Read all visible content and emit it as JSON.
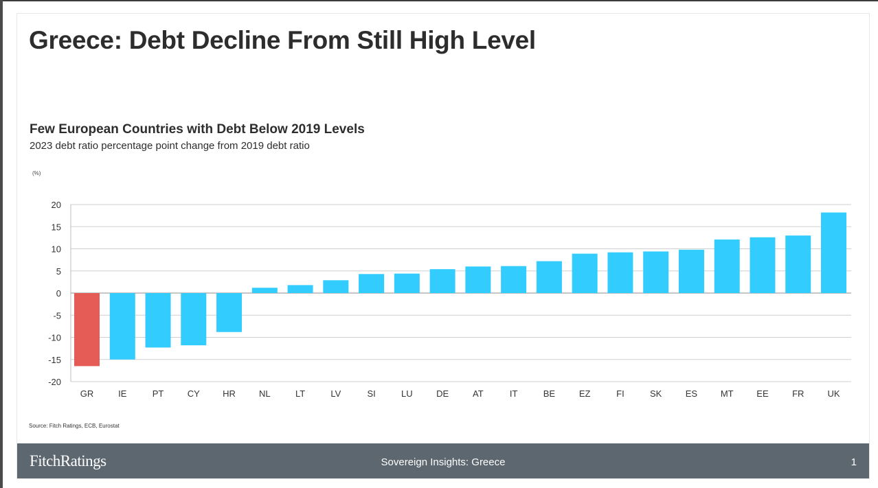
{
  "slide_title": "Greece: Debt Decline From Still High Level",
  "chart_data": {
    "type": "bar",
    "title": "Few European Countries with Debt Below 2019 Levels",
    "subtitle": "2023 debt ratio percentage point change from 2019 debt ratio",
    "unit": "(%)",
    "ylim": [
      -20,
      20
    ],
    "yticks": [
      20,
      15,
      10,
      5,
      0,
      -5,
      -10,
      -15,
      -20
    ],
    "grid": true,
    "categories": [
      "GR",
      "IE",
      "PT",
      "CY",
      "HR",
      "NL",
      "LT",
      "LV",
      "SI",
      "LU",
      "DE",
      "AT",
      "IT",
      "BE",
      "EZ",
      "FI",
      "SK",
      "ES",
      "MT",
      "EE",
      "FR",
      "UK"
    ],
    "values": [
      -16.5,
      -15.0,
      -12.3,
      -11.8,
      -8.8,
      1.2,
      1.8,
      2.9,
      4.3,
      4.4,
      5.4,
      6.0,
      6.1,
      7.2,
      8.9,
      9.2,
      9.4,
      9.8,
      12.1,
      12.6,
      13.0,
      18.2
    ],
    "colors": {
      "highlight": "#e55c57",
      "default": "#33ccff"
    },
    "highlight_category": "GR"
  },
  "source": "Source: Fitch Ratings, ECB, Eurostat",
  "footer": {
    "logo": "FitchRatings",
    "center": "Sovereign Insights: Greece",
    "page": "1"
  }
}
